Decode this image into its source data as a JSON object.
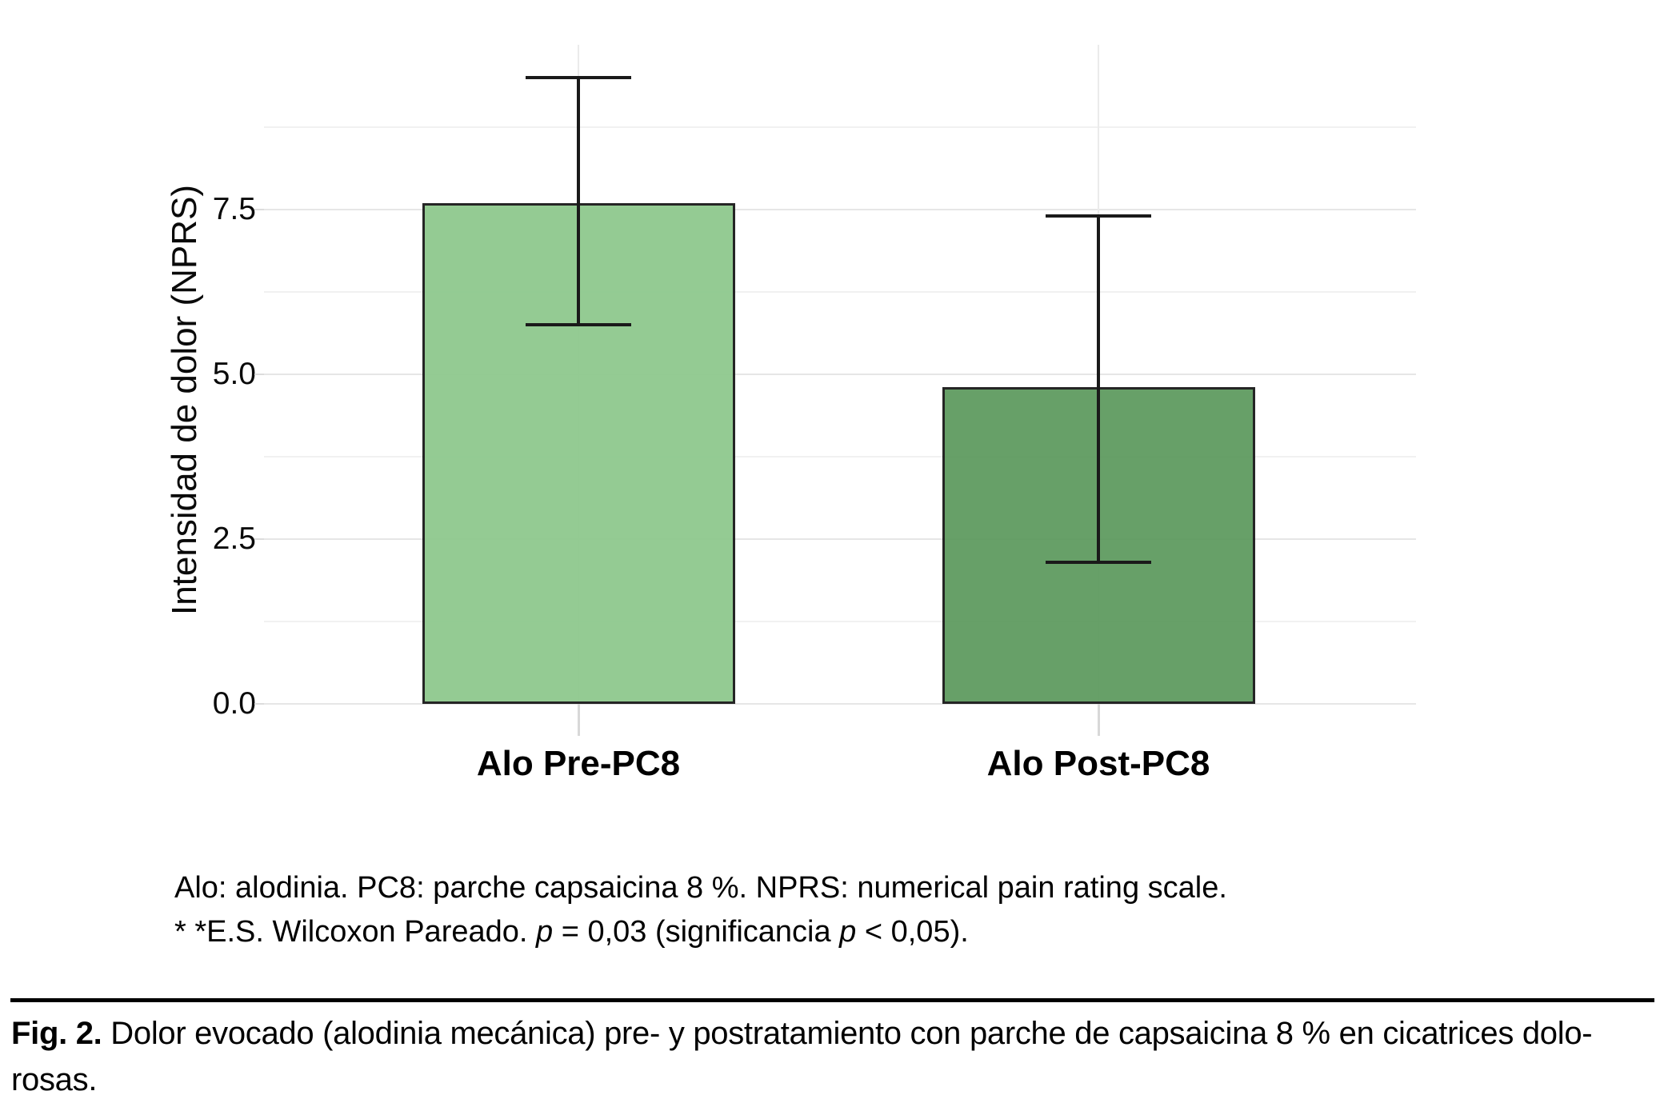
{
  "chart_data": {
    "type": "bar",
    "title": "",
    "categories": [
      "Alo Pre-PC8",
      "Alo Post-PC8"
    ],
    "values": [
      7.6,
      4.8
    ],
    "error_bars": [
      {
        "low": 5.75,
        "high": 9.5
      },
      {
        "low": 2.15,
        "high": 7.4
      }
    ],
    "ylabel": "Intensidad de dolor (NPRS)",
    "xlabel": "",
    "ylim": [
      0,
      10
    ],
    "yticks": [
      {
        "value": 0,
        "label": "0.0"
      },
      {
        "value": 2.5,
        "label": "2.5"
      },
      {
        "value": 5,
        "label": "5.0"
      },
      {
        "value": 7.5,
        "label": "7.5"
      }
    ],
    "minor_gridlines": [
      1.25,
      3.75,
      6.25,
      8.75
    ],
    "grid": "horizontal major and minor gridlines, vertical gridline at each category center",
    "legend": "none",
    "bar_colors": [
      "#8fc98e",
      "#5f9b60"
    ],
    "bar_border_color": "#1a1a1a",
    "error_bar_color": "#1a1a1a"
  },
  "footnotes": {
    "line1": "Alo: alodinia. PC8: parche capsaicina 8 %. NPRS: numerical pain rating scale.",
    "line2_pre": "* *E.S. Wilcoxon Pareado. ",
    "line2_p1": "p",
    "line2_mid": " = 0,03 (significancia ",
    "line2_p2": "p",
    "line2_end": " < 0,05)."
  },
  "caption": {
    "fig_label": "Fig. 2.",
    "line1": " Dolor evocado (alodinia mecánica) pre- y postratamiento con parche de capsaicina 8 % en cicatrices dolo-",
    "line2": "rosas."
  }
}
